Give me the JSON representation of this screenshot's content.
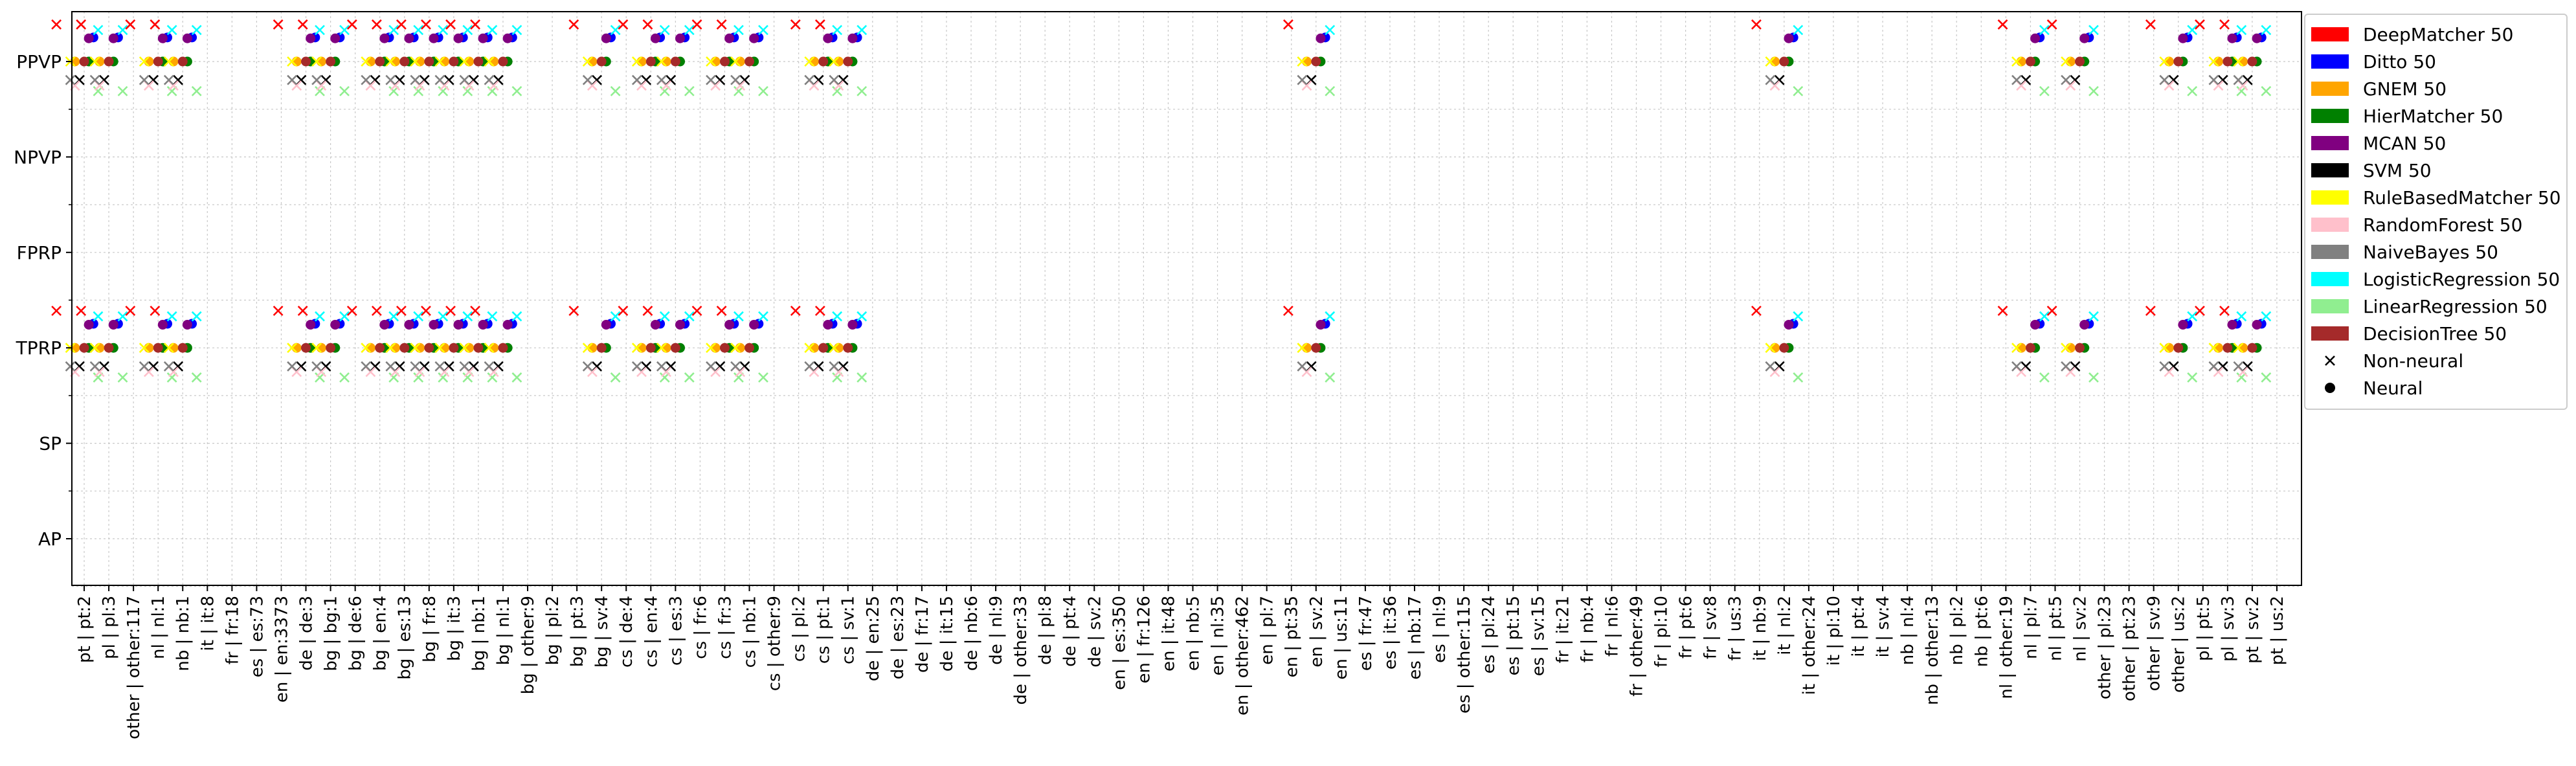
{
  "chart_data": {
    "type": "scatter",
    "title": "",
    "xlabel": "",
    "ylabel": "",
    "grid": true,
    "grid_style": "dotted",
    "legend_position": "outside-right",
    "y_categories": [
      "PPVP",
      "NPVP",
      "FPRP",
      "TPRP",
      "SP",
      "AP"
    ],
    "x_categories": [
      "pt | pt:2",
      "pl | pl:3",
      "other | other:117",
      "nl | nl:1",
      "nb | nb:1",
      "it | it:8",
      "fr | fr:18",
      "es | es:73",
      "en | en:3373",
      "de | de:3",
      "bg | bg:1",
      "bg | de:6",
      "bg | en:4",
      "bg | es:13",
      "bg | fr:8",
      "bg | it:3",
      "bg | nb:1",
      "bg | nl:1",
      "bg | other:9",
      "bg | pl:2",
      "bg | pt:3",
      "bg | sv:4",
      "cs | de:4",
      "cs | en:4",
      "cs | es:3",
      "cs | fr:6",
      "cs | fr:3",
      "cs | nb:1",
      "cs | other:9",
      "cs | pl:2",
      "cs | pt:1",
      "cs | sv:1",
      "de | en:25",
      "de | es:23",
      "de | fr:17",
      "de | it:15",
      "de | nb:6",
      "de | nl:9",
      "de | other:33",
      "de | pl:8",
      "de | pt:4",
      "de | sv:2",
      "en | es:350",
      "en | fr:126",
      "en | it:48",
      "en | nb:5",
      "en | nl:35",
      "en | other:462",
      "en | pl:7",
      "en | pt:35",
      "en | sv:2",
      "en | us:11",
      "es | fr:47",
      "es | it:36",
      "es | nb:17",
      "es | nl:9",
      "es | other:115",
      "es | pl:24",
      "es | pt:15",
      "es | sv:15",
      "fr | it:21",
      "fr | nb:4",
      "fr | nl:6",
      "fr | other:49",
      "fr | pl:10",
      "fr | pt:6",
      "fr | sv:8",
      "fr | us:3",
      "it | nb:9",
      "it | nl:2",
      "it | other:24",
      "it | pl:10",
      "it | pt:4",
      "it | sv:4",
      "nb | nl:4",
      "nb | other:13",
      "nb | pl:2",
      "nb | pt:6",
      "nl | other:19",
      "nl | pl:7",
      "nl | pt:5",
      "nl | sv:2",
      "other | pl:23",
      "other | pt:23",
      "other | sv:9",
      "other | us:2",
      "pl | pt:5",
      "pl | sv:3",
      "pt | sv:2",
      "pt | us:2"
    ],
    "marked_x_categories": [
      "pt | pt:2",
      "pl | pl:3",
      "nl | nl:1",
      "nb | nb:1",
      "de | de:3",
      "bg | bg:1",
      "bg | en:4",
      "bg | es:13",
      "bg | fr:8",
      "bg | it:3",
      "bg | nb:1",
      "bg | nl:1",
      "bg | sv:4",
      "cs | en:4",
      "cs | es:3",
      "cs | fr:3",
      "cs | nb:1",
      "cs | pt:1",
      "cs | sv:1",
      "en | sv:2",
      "it | nl:2",
      "nl | pl:7",
      "nl | sv:2",
      "other | us:2",
      "pl | sv:3",
      "pt | sv:2"
    ],
    "marked_y_categories": [
      "PPVP",
      "TPRP"
    ],
    "series": [
      {
        "name": "DeepMatcher 50",
        "color": "#ff0000",
        "marker": "x",
        "offset": [
          -6,
          -2
        ]
      },
      {
        "name": "Ditto 50",
        "color": "#0000ff",
        "marker": "o",
        "offset": [
          2,
          -1.3
        ]
      },
      {
        "name": "GNEM 50",
        "color": "#ffa500",
        "marker": "o",
        "offset": [
          -2,
          0
        ]
      },
      {
        "name": "HierMatcher 50",
        "color": "#008000",
        "marker": "o",
        "offset": [
          1,
          0
        ]
      },
      {
        "name": "MCAN 50",
        "color": "#800080",
        "marker": "o",
        "offset": [
          1,
          -1.25
        ]
      },
      {
        "name": "SVM 50",
        "color": "#000000",
        "marker": "x",
        "offset": [
          -1,
          1
        ]
      },
      {
        "name": "RuleBasedMatcher 50",
        "color": "#ffff00",
        "marker": "x",
        "offset": [
          -3,
          0
        ]
      },
      {
        "name": "RandomForest 50",
        "color": "#ffc0cb",
        "marker": "x",
        "offset": [
          -2,
          1.3
        ]
      },
      {
        "name": "NaiveBayes 50",
        "color": "#808080",
        "marker": "x",
        "offset": [
          -3,
          1
        ]
      },
      {
        "name": "LogisticRegression 50",
        "color": "#00ffff",
        "marker": "x",
        "offset": [
          3,
          -1.7
        ]
      },
      {
        "name": "LinearRegression 50",
        "color": "#90ee90",
        "marker": "x",
        "offset": [
          3,
          1.6
        ]
      },
      {
        "name": "DecisionTree 50",
        "color": "#a52a2a",
        "marker": "o",
        "offset": [
          0,
          0
        ]
      }
    ],
    "marker_legend": [
      {
        "name": "Non-neural",
        "marker": "x"
      },
      {
        "name": "Neural",
        "marker": "o"
      }
    ]
  }
}
